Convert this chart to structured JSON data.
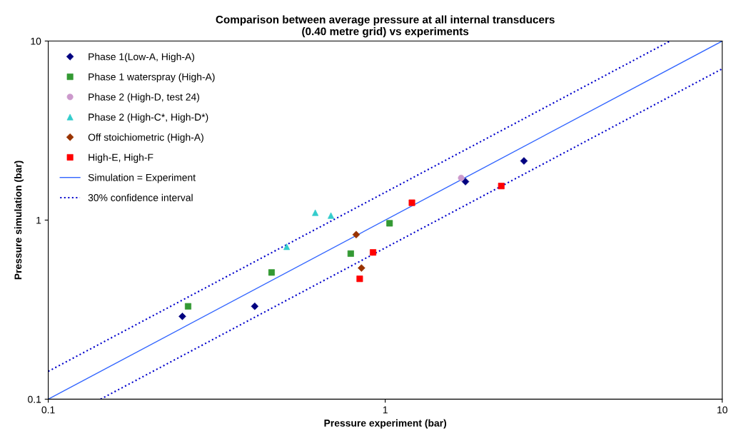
{
  "chart_data": {
    "type": "scatter",
    "title": "Comparison between average pressure at all internal transducers\n(0.40 metre grid) vs experiments",
    "xlabel": "Pressure experiment (bar)",
    "ylabel": "Pressure simulation (bar)",
    "log": "xy",
    "xlim": [
      0.1,
      10
    ],
    "ylim": [
      0.1,
      10
    ],
    "xticks": [
      0.1,
      1,
      10
    ],
    "yticks": [
      0.1,
      1,
      10
    ],
    "grid": false,
    "legend": "top left",
    "series": [
      {
        "name": "Phase 1(Low-A, High-A)",
        "marker": "diamond",
        "color": "#000080",
        "x": [
          0.25,
          0.41,
          1.73,
          2.58
        ],
        "values": [
          0.29,
          0.33,
          1.64,
          2.14
        ]
      },
      {
        "name": "Phase 1 waterspray (High-A)",
        "marker": "square",
        "color": "#339933",
        "x": [
          0.26,
          0.46,
          0.79,
          1.03
        ],
        "values": [
          0.33,
          0.51,
          0.65,
          0.96
        ]
      },
      {
        "name": "Phase 2 (High-D, test 24)",
        "marker": "circle",
        "color": "#cc99cc",
        "x": [
          1.68
        ],
        "values": [
          1.72
        ]
      },
      {
        "name": "Phase 2 (High-C*, High-D*)",
        "marker": "triangle",
        "color": "#33cccc",
        "x": [
          0.51,
          0.62,
          0.69
        ],
        "values": [
          0.71,
          1.1,
          1.06
        ]
      },
      {
        "name": "Off stoichiometric (High-A)",
        "marker": "diamond",
        "color": "#993300",
        "x": [
          0.82,
          0.85
        ],
        "values": [
          0.83,
          0.54
        ]
      },
      {
        "name": "High-E, High-F",
        "marker": "square",
        "color": "#ff0000",
        "x": [
          0.84,
          0.92,
          1.2,
          2.21
        ],
        "values": [
          0.47,
          0.66,
          1.25,
          1.55
        ]
      },
      {
        "name": "Simulation = Experiment",
        "type": "line",
        "marker": "none",
        "line_style": "solid",
        "color": "#3366ff",
        "x": [
          0.1,
          10
        ],
        "values": [
          0.1,
          10
        ]
      },
      {
        "name": "30% confidence interval",
        "type": "line",
        "marker": "none",
        "line_style": "dotted",
        "color": "#0000cc",
        "x": [
          0.1,
          7
        ],
        "values": [
          0.143,
          10
        ]
      },
      {
        "type": "line",
        "marker": "none",
        "line_style": "dotted",
        "color": "#0000cc",
        "x": [
          0.143,
          10
        ],
        "values": [
          0.1,
          7
        ]
      }
    ]
  }
}
